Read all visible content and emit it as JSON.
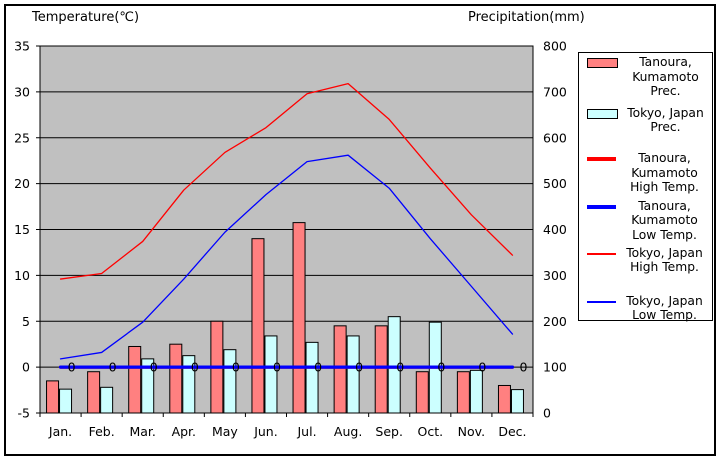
{
  "chart_data": {
    "type": "combo-bar-line",
    "categories": [
      "Jan.",
      "Feb.",
      "Mar.",
      "Apr.",
      "May",
      "Jun.",
      "Jul.",
      "Aug.",
      "Sep.",
      "Oct.",
      "Nov.",
      "Dec."
    ],
    "left_axis": {
      "title": "Temperature(℃)",
      "min": -5,
      "max": 35,
      "tick_interval": 5,
      "tick_labels": [
        "35",
        "30",
        "25",
        "20",
        "15",
        "10",
        "5",
        "0",
        "-5"
      ]
    },
    "right_axis": {
      "title": "Precipitation(mm)",
      "min": 0,
      "max": 800,
      "tick_interval": 100,
      "tick_labels": [
        "800",
        "700",
        "600",
        "500",
        "400",
        "300",
        "200",
        "100",
        "0"
      ]
    },
    "plot_bg": "#C0C0C0",
    "grid_color": "#000000",
    "bar_series": [
      {
        "name": "Tanoura, Kumamoto Prec.",
        "axis": "right",
        "color": "#FF8080",
        "border": "#000000",
        "values": [
          70,
          90,
          145,
          150,
          200,
          380,
          415,
          190,
          190,
          90,
          90,
          60
        ]
      },
      {
        "name": "Tokyo, Japan Prec.",
        "axis": "right",
        "color": "#CCFFFF",
        "border": "#000000",
        "values": [
          52,
          56,
          118,
          125,
          138,
          168,
          154,
          168,
          210,
          198,
          93,
          51
        ]
      }
    ],
    "line_series": [
      {
        "name": "Tanoura, Kumamoto High Temp.",
        "axis": "left",
        "color": "#FF0000",
        "width": 3.2,
        "values": [
          0,
          0,
          0,
          0,
          0,
          0,
          0,
          0,
          0,
          0,
          0,
          0
        ]
      },
      {
        "name": "Tanoura, Kumamoto Low Temp.",
        "axis": "left",
        "color": "#0000FF",
        "width": 3.2,
        "values": [
          0,
          0,
          0,
          0,
          0,
          0,
          0,
          0,
          0,
          0,
          0,
          0
        ],
        "point_labels": [
          "0",
          "0",
          "0",
          "0",
          "0",
          "0",
          "0",
          "0",
          "0",
          "0",
          "0",
          "0"
        ]
      },
      {
        "name": "Tokyo, Japan High Temp.",
        "axis": "left",
        "color": "#FF0000",
        "width": 1.3,
        "values": [
          9.6,
          10.2,
          13.7,
          19.3,
          23.4,
          26.1,
          29.8,
          30.9,
          27.0,
          21.7,
          16.6,
          12.2
        ]
      },
      {
        "name": "Tokyo, Japan Low Temp.",
        "axis": "left",
        "color": "#0000FF",
        "width": 1.3,
        "values": [
          0.9,
          1.6,
          4.9,
          9.6,
          14.7,
          18.8,
          22.4,
          23.1,
          19.5,
          14.0,
          8.8,
          3.6
        ]
      }
    ],
    "legend": {
      "position": "right",
      "entries": [
        {
          "swatch": "box",
          "color": "#FF8080",
          "lines": [
            "Tanoura,",
            "Kumamoto",
            "Prec."
          ]
        },
        {
          "swatch": "box",
          "color": "#CCFFFF",
          "lines": [
            "Tokyo, Japan",
            "Prec."
          ]
        },
        {
          "swatch": "thick-line",
          "color": "#FF0000",
          "lines": [
            "Tanoura,",
            "Kumamoto",
            "High Temp."
          ]
        },
        {
          "swatch": "thick-line",
          "color": "#0000FF",
          "lines": [
            "Tanoura,",
            "Kumamoto",
            "Low Temp."
          ]
        },
        {
          "swatch": "thin-line",
          "color": "#FF0000",
          "lines": [
            "Tokyo, Japan",
            "High Temp."
          ]
        },
        {
          "swatch": "thin-line",
          "color": "#0000FF",
          "lines": [
            "Tokyo, Japan",
            "Low Temp."
          ]
        }
      ]
    }
  }
}
